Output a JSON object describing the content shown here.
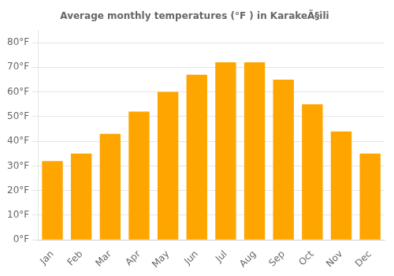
{
  "chart_data": {
    "type": "bar",
    "title": "Average monthly temperatures (°F ) in KarakeÃ§ili",
    "categories": [
      "Jan",
      "Feb",
      "Mar",
      "Apr",
      "May",
      "Jun",
      "Jul",
      "Aug",
      "Sep",
      "Oct",
      "Nov",
      "Dec"
    ],
    "values": [
      32,
      35,
      43,
      52,
      60,
      67,
      72,
      72,
      65,
      55,
      44,
      35
    ],
    "color": "#FFA500",
    "ylim": [
      0,
      85
    ],
    "yticks": [
      {
        "value": 0,
        "label": "0°F"
      },
      {
        "value": 10,
        "label": "10°F"
      },
      {
        "value": 20,
        "label": "20°F"
      },
      {
        "value": 30,
        "label": "30°F"
      },
      {
        "value": 40,
        "label": "40°F"
      },
      {
        "value": 50,
        "label": "50°F"
      },
      {
        "value": 60,
        "label": "60°F"
      },
      {
        "value": 70,
        "label": "70°F"
      },
      {
        "value": 80,
        "label": "80°F"
      }
    ],
    "grid": true
  }
}
